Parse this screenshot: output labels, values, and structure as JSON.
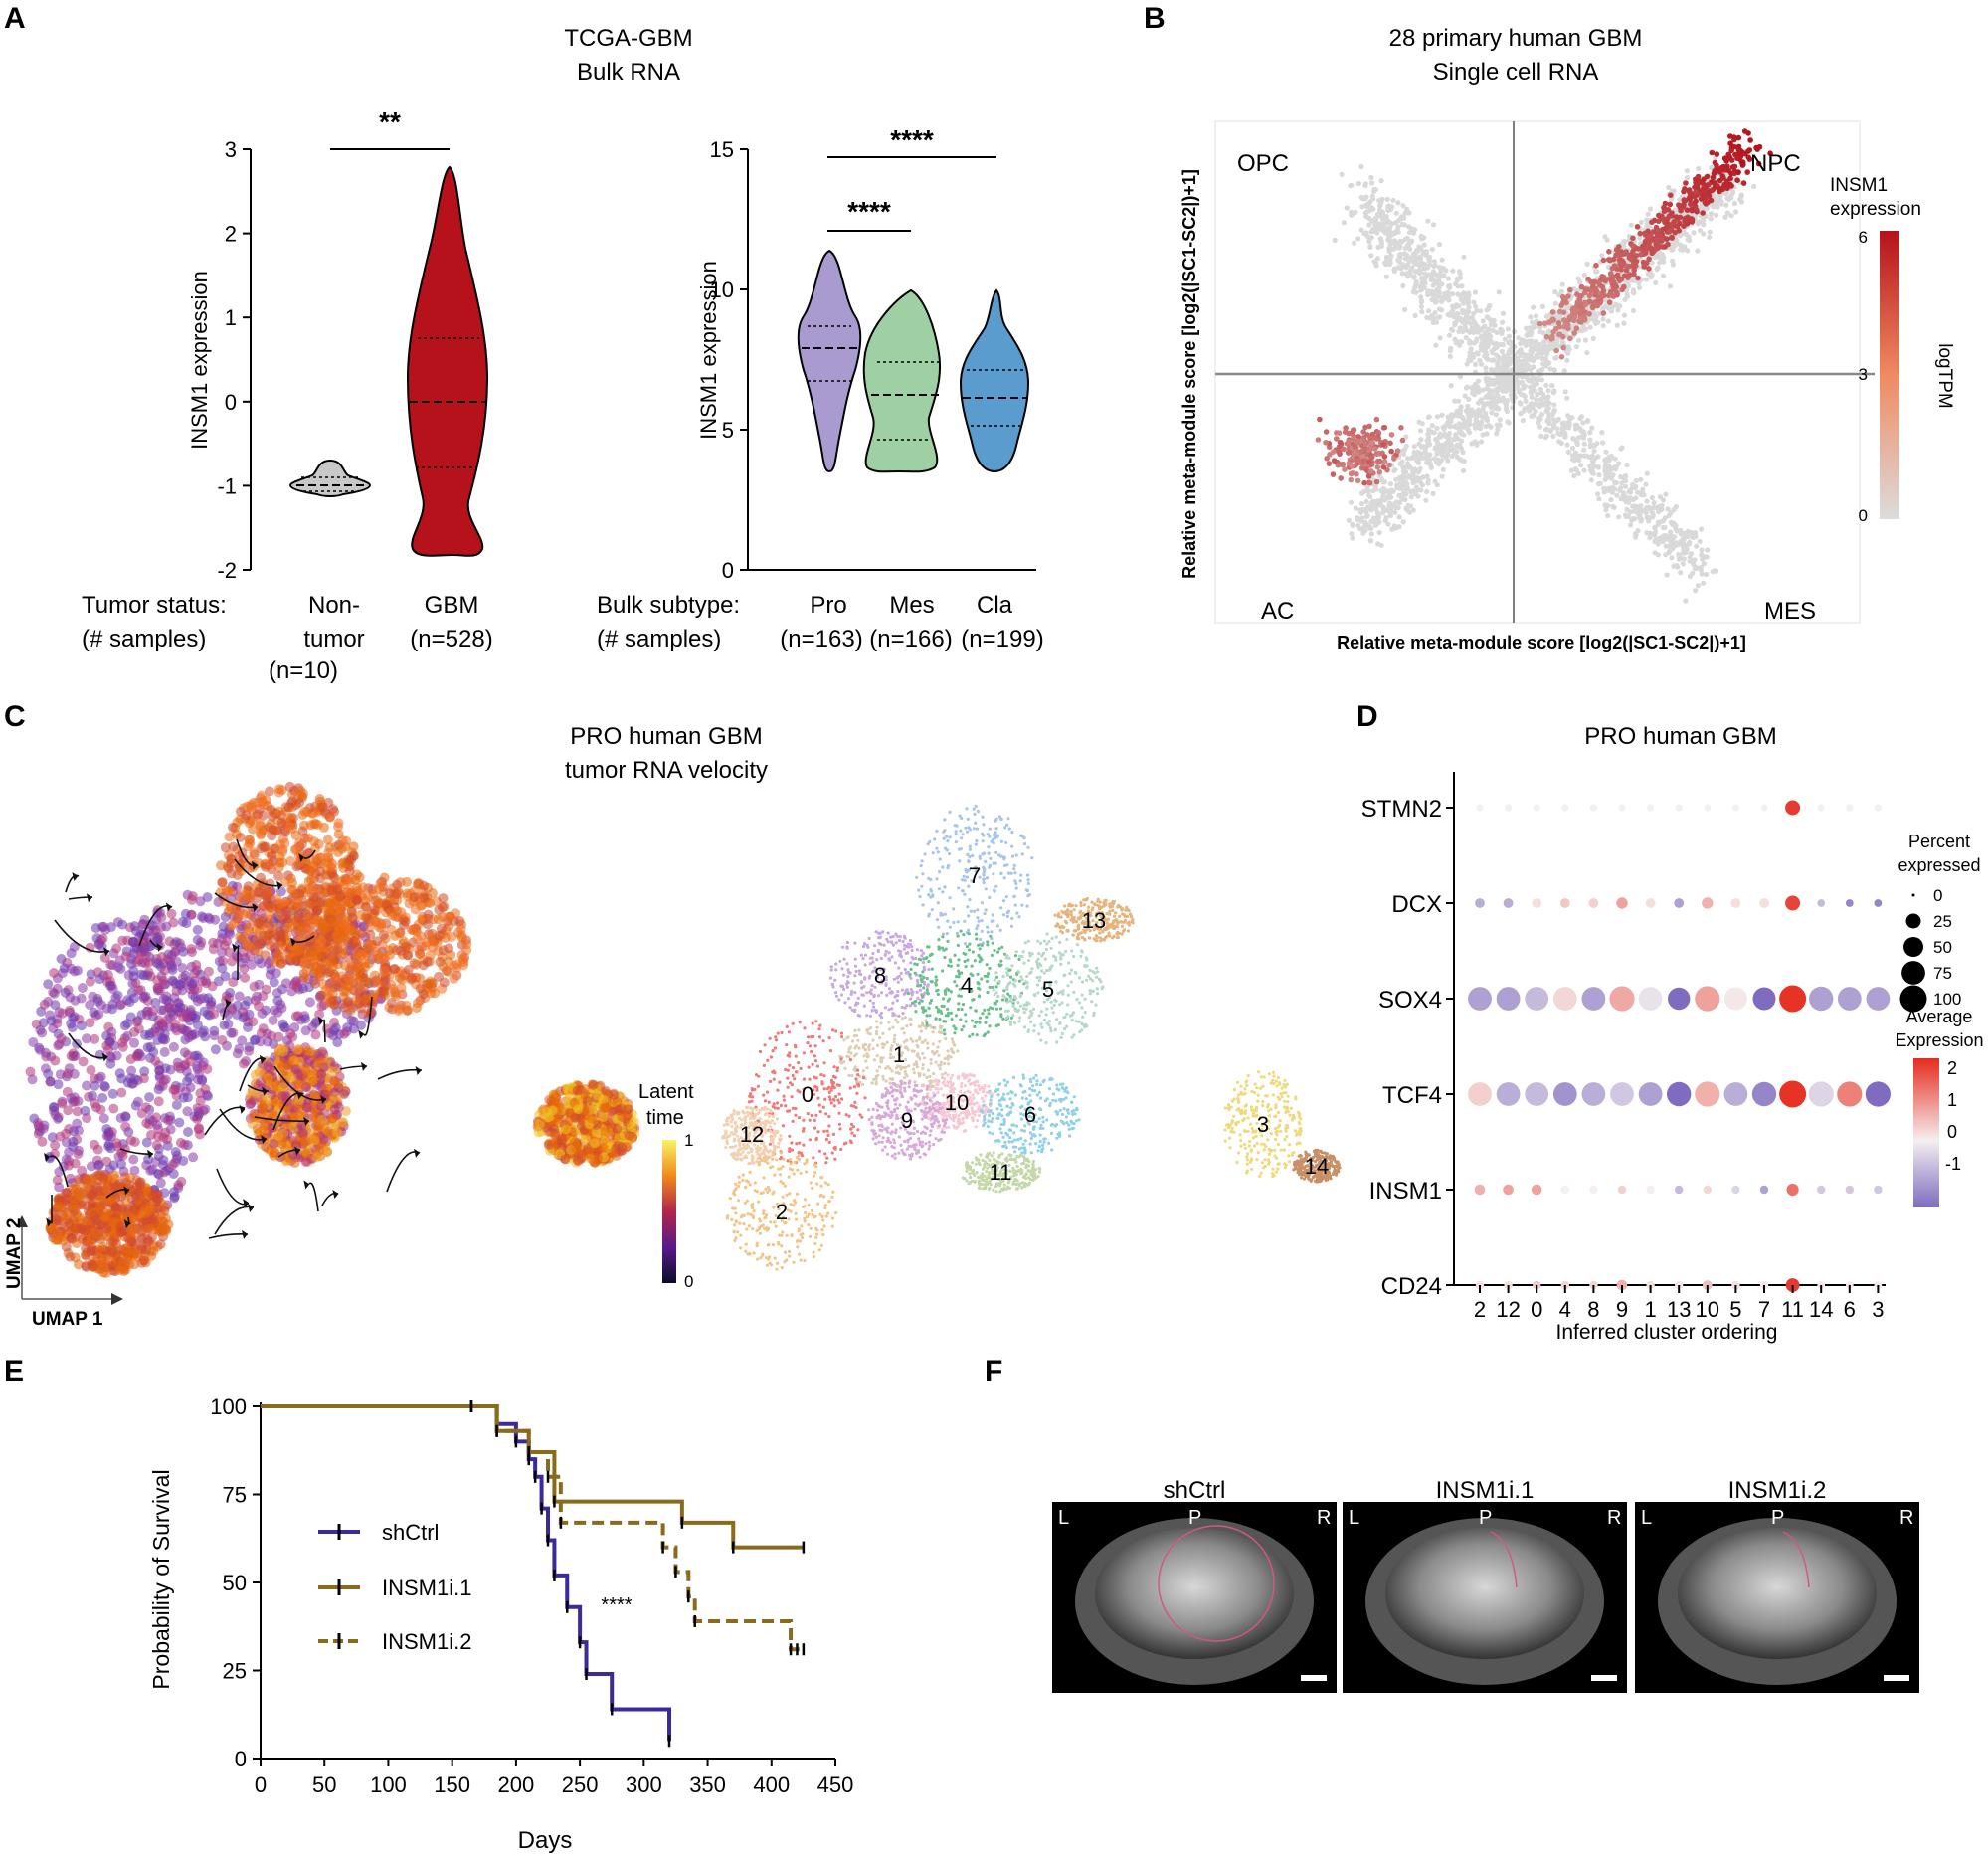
{
  "panels": {
    "A": {
      "letter": "A",
      "title1": "TCGA-GBM",
      "title2": "Bulk RNA",
      "left": {
        "ylabel": "INSM1 expression",
        "yticks": [
          "3",
          "2",
          "1",
          "0",
          "-1",
          "-2"
        ],
        "xlabel1": "Tumor status:",
        "xlabel2": "(# samples)",
        "cat1": [
          "Non-",
          "tumor",
          "(n=10)"
        ],
        "cat2": [
          "GBM",
          "(n=528)"
        ],
        "sig": "**"
      },
      "right": {
        "ylabel": "INSM1 expression",
        "yticks": [
          "15",
          "10",
          "5",
          "0"
        ],
        "xlabel1": "Bulk subtype:",
        "xlabel2": "(# samples)",
        "cats": [
          "Pro",
          "Mes",
          "Cla"
        ],
        "ns": [
          "(n=163)",
          "(n=166)",
          "(n=199)"
        ],
        "sig1": "****",
        "sig2": "****"
      }
    },
    "B": {
      "letter": "B",
      "title1": "28 primary human GBM",
      "title2": "Single cell RNA",
      "ylabel": "Relative meta-module score [log2(|SC1-SC2|)+1]",
      "xlabel": "Relative meta-module score [log2(|SC1-SC2|)+1]",
      "quadrants": [
        "OPC",
        "NPC",
        "AC",
        "MES"
      ],
      "legend_title1": "INSM1",
      "legend_title2": "expression",
      "legend_ticks": [
        "6",
        "3",
        "0"
      ],
      "legend_unit": "logTPM"
    },
    "C": {
      "letter": "C",
      "title1": "PRO human GBM",
      "title2": "tumor RNA velocity",
      "axis1": "UMAP 1",
      "axis2": "UMAP 2",
      "legend_title1": "Latent",
      "legend_title2": "time",
      "legend_max": "1",
      "legend_min": "0",
      "clusters": [
        "7",
        "13",
        "8",
        "4",
        "5",
        "1",
        "0",
        "12",
        "10",
        "9",
        "6",
        "11",
        "2",
        "3",
        "14"
      ]
    },
    "D": {
      "letter": "D",
      "title": "PRO human GBM",
      "genes": [
        "STMN2",
        "DCX",
        "SOX4",
        "TCF4",
        "INSM1",
        "CD24"
      ],
      "cluster_order": [
        "2",
        "12",
        "0",
        "4",
        "8",
        "9",
        "1",
        "13",
        "10",
        "5",
        "7",
        "11",
        "14",
        "6",
        "3"
      ],
      "xlabel": "Inferred cluster ordering",
      "size_legend_title1": "Percent",
      "size_legend_title2": "expressed",
      "size_legend_values": [
        "0",
        "25",
        "50",
        "75",
        "100"
      ],
      "color_legend_title1": "Average",
      "color_legend_title2": "Expression",
      "color_legend_ticks": [
        "2",
        "1",
        "0",
        "-1"
      ]
    },
    "E": {
      "letter": "E",
      "ylabel": "Probability of Survival",
      "xlabel": "Days",
      "sig": "****",
      "legend": [
        "shCtrl",
        "INSM1i.1",
        "INSM1i.2"
      ]
    },
    "F": {
      "letter": "F",
      "images": [
        {
          "label": "shCtrl",
          "L": "L",
          "P": "P",
          "R": "R"
        },
        {
          "label": "INSM1i.1",
          "L": "L",
          "P": "P",
          "R": "R"
        },
        {
          "label": "INSM1i.2",
          "L": "L",
          "P": "P",
          "R": "R"
        }
      ]
    }
  },
  "colors": {
    "violin_nontumor": "#c8c8c8",
    "violin_gbm": "#b5121b",
    "violin_pro": "#a99bd0",
    "violin_mes": "#9fd0a4",
    "violin_cla": "#5a9ccd",
    "shCtrl": "#3b2a9b",
    "insm1": "#8a6b1c"
  },
  "chart_data": [
    {
      "id": "A-left",
      "type": "violin",
      "title": "TCGA-GBM Bulk RNA",
      "ylabel": "INSM1 expression",
      "ylim": [
        -2,
        3
      ],
      "categories": [
        "Non-tumor (n=10)",
        "GBM (n=528)"
      ],
      "medians": [
        -1.0,
        0.0
      ],
      "quartiles": [
        [
          -1.05,
          -0.95
        ],
        [
          -0.78,
          0.77
        ]
      ],
      "ranges": [
        [
          -1.12,
          -0.7
        ],
        [
          -1.8,
          2.8
        ]
      ],
      "significance": "**"
    },
    {
      "id": "A-right",
      "type": "violin",
      "ylabel": "INSM1 expression",
      "ylim": [
        0,
        15
      ],
      "categories": [
        "Pro (n=163)",
        "Mes (n=166)",
        "Cla (n=199)"
      ],
      "medians": [
        7.9,
        6.3,
        6.2
      ],
      "quartiles": [
        [
          6.9,
          8.9
        ],
        [
          4.9,
          7.5
        ],
        [
          5.1,
          7.1
        ]
      ],
      "ranges": [
        [
          3.5,
          11.5
        ],
        [
          3.6,
          10.0
        ],
        [
          3.6,
          10.0
        ]
      ],
      "significance": [
        [
          "Pro",
          "Cla",
          "****"
        ],
        [
          "Pro",
          "Mes",
          "****"
        ]
      ]
    },
    {
      "id": "B",
      "type": "scatter",
      "title": "28 primary human GBM Single cell RNA",
      "xlabel": "Relative meta-module score [log2(|SC1-SC2|)+1]",
      "ylabel": "Relative meta-module score [log2(|SC1-SC2|)+1]",
      "quadrants": [
        "OPC",
        "NPC",
        "AC",
        "MES"
      ],
      "color_scale": {
        "label": "INSM1 expression (logTPM)",
        "range": [
          0,
          6
        ]
      }
    },
    {
      "id": "D",
      "type": "dotplot",
      "title": "PRO human GBM",
      "xlabel": "Inferred cluster ordering",
      "x": [
        "2",
        "12",
        "0",
        "4",
        "8",
        "9",
        "1",
        "13",
        "10",
        "5",
        "7",
        "11",
        "14",
        "6",
        "3"
      ],
      "genes": [
        "STMN2",
        "DCX",
        "SOX4",
        "TCF4",
        "INSM1",
        "CD24"
      ],
      "percent_expressed": [
        [
          3,
          3,
          3,
          3,
          3,
          3,
          3,
          3,
          3,
          3,
          3,
          25,
          3,
          3,
          3
        ],
        [
          8,
          8,
          8,
          8,
          8,
          12,
          8,
          8,
          12,
          8,
          8,
          25,
          4,
          4,
          4
        ],
        [
          75,
          75,
          75,
          75,
          75,
          85,
          75,
          65,
          85,
          70,
          70,
          100,
          80,
          75,
          75
        ],
        [
          75,
          75,
          75,
          75,
          75,
          75,
          75,
          80,
          85,
          75,
          80,
          100,
          85,
          85,
          85
        ],
        [
          10,
          10,
          10,
          5,
          5,
          5,
          5,
          5,
          5,
          5,
          5,
          15,
          5,
          5,
          5
        ],
        [
          5,
          5,
          5,
          5,
          5,
          10,
          5,
          5,
          8,
          5,
          5,
          20,
          4,
          4,
          4
        ]
      ],
      "average_expression": [
        [
          0,
          0,
          0,
          0,
          0,
          0,
          0,
          0,
          0,
          0,
          0,
          2.3,
          0,
          0,
          0
        ],
        [
          -0.5,
          -0.5,
          0.2,
          0.5,
          0.4,
          1.0,
          0.2,
          -0.6,
          0.8,
          0.2,
          0.2,
          2.2,
          -0.4,
          -0.8,
          -0.8
        ],
        [
          -0.6,
          -0.6,
          -0.4,
          0.3,
          -0.6,
          0.9,
          -0.1,
          -1.2,
          1.0,
          0.1,
          -1.0,
          2.4,
          -0.6,
          -0.6,
          -0.6
        ],
        [
          0.4,
          -0.5,
          -0.4,
          -0.7,
          -0.5,
          -0.3,
          -0.6,
          -1.2,
          0.8,
          -0.5,
          -0.8,
          2.4,
          -0.2,
          1.4,
          -1.0
        ],
        [
          0.8,
          1.0,
          1.0,
          0,
          0,
          0.4,
          0,
          -0.4,
          0.3,
          -0.2,
          -0.6,
          1.6,
          -0.3,
          -0.3,
          -0.3
        ],
        [
          0.2,
          0.2,
          0.5,
          0.3,
          0.3,
          0.8,
          0.2,
          0.1,
          0.6,
          0.2,
          0.1,
          2.3,
          0.1,
          0.1,
          0.1
        ]
      ],
      "color_range": [
        -1,
        2.5
      ]
    },
    {
      "id": "E",
      "type": "line",
      "xlabel": "Days",
      "ylabel": "Probability of Survival",
      "xlim": [
        0,
        450
      ],
      "ylim": [
        0,
        100
      ],
      "significance": "****",
      "series": [
        {
          "name": "shCtrl",
          "x": [
            0,
            165,
            185,
            200,
            210,
            215,
            220,
            225,
            230,
            240,
            250,
            255,
            275,
            320
          ],
          "y": [
            100,
            100,
            95,
            90,
            85,
            80,
            71,
            62,
            52,
            43,
            33,
            24,
            14,
            5
          ]
        },
        {
          "name": "INSM1i.1",
          "x": [
            0,
            165,
            185,
            210,
            230,
            330,
            370,
            425
          ],
          "y": [
            100,
            100,
            93,
            87,
            73,
            67,
            60,
            60
          ]
        },
        {
          "name": "INSM1i.2",
          "x": [
            0,
            165,
            185,
            210,
            225,
            235,
            315,
            325,
            335,
            340,
            415,
            420,
            425
          ],
          "y": [
            100,
            100,
            93,
            87,
            80,
            67,
            60,
            53,
            46,
            39,
            31,
            31,
            31
          ]
        }
      ]
    }
  ]
}
